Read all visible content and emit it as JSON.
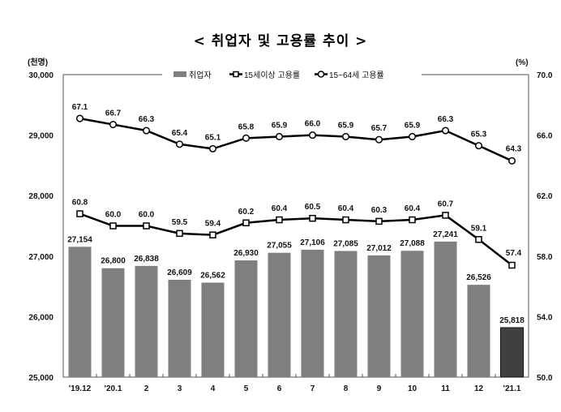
{
  "chart_data": {
    "type": "bar",
    "title": "< 취업자 및 고용률 추이 >",
    "left_unit": "(천명)",
    "right_unit": "(%)",
    "categories": [
      "'19.12",
      "'20.1",
      "2",
      "3",
      "4",
      "5",
      "6",
      "7",
      "8",
      "9",
      "10",
      "11",
      "12",
      "'21.1"
    ],
    "left_ylim": [
      25000,
      30000
    ],
    "right_ylim": [
      50,
      70
    ],
    "left_ticks": [
      "25,000",
      "26,000",
      "27,000",
      "28,000",
      "29,000",
      "30,000"
    ],
    "right_ticks": [
      "50.0",
      "54.0",
      "58.0",
      "62.0",
      "66.0",
      "70.0"
    ],
    "bars": {
      "name": "취업자",
      "values": [
        27154,
        26800,
        26838,
        26609,
        26562,
        26930,
        27055,
        27106,
        27085,
        27012,
        27088,
        27241,
        26526,
        25818
      ],
      "labels": [
        "27,154",
        "26,800",
        "26,838",
        "26,609",
        "26,562",
        "26,930",
        "27,055",
        "27,106",
        "27,085",
        "27,012",
        "27,088",
        "27,241",
        "26,526",
        "25,818"
      ],
      "color": "#7f7f7f",
      "highlight_color": "#404040"
    },
    "series": [
      {
        "name": "15세이상 고용률",
        "marker": "square",
        "values": [
          60.8,
          60.0,
          60.0,
          59.5,
          59.4,
          60.2,
          60.4,
          60.5,
          60.4,
          60.3,
          60.4,
          60.7,
          59.1,
          57.4
        ]
      },
      {
        "name": "15~64세 고용률",
        "marker": "circle",
        "values": [
          67.1,
          66.7,
          66.3,
          65.4,
          65.1,
          65.8,
          65.9,
          66.0,
          65.9,
          65.7,
          65.9,
          66.3,
          65.3,
          64.3
        ]
      }
    ],
    "legend": "top-center"
  }
}
